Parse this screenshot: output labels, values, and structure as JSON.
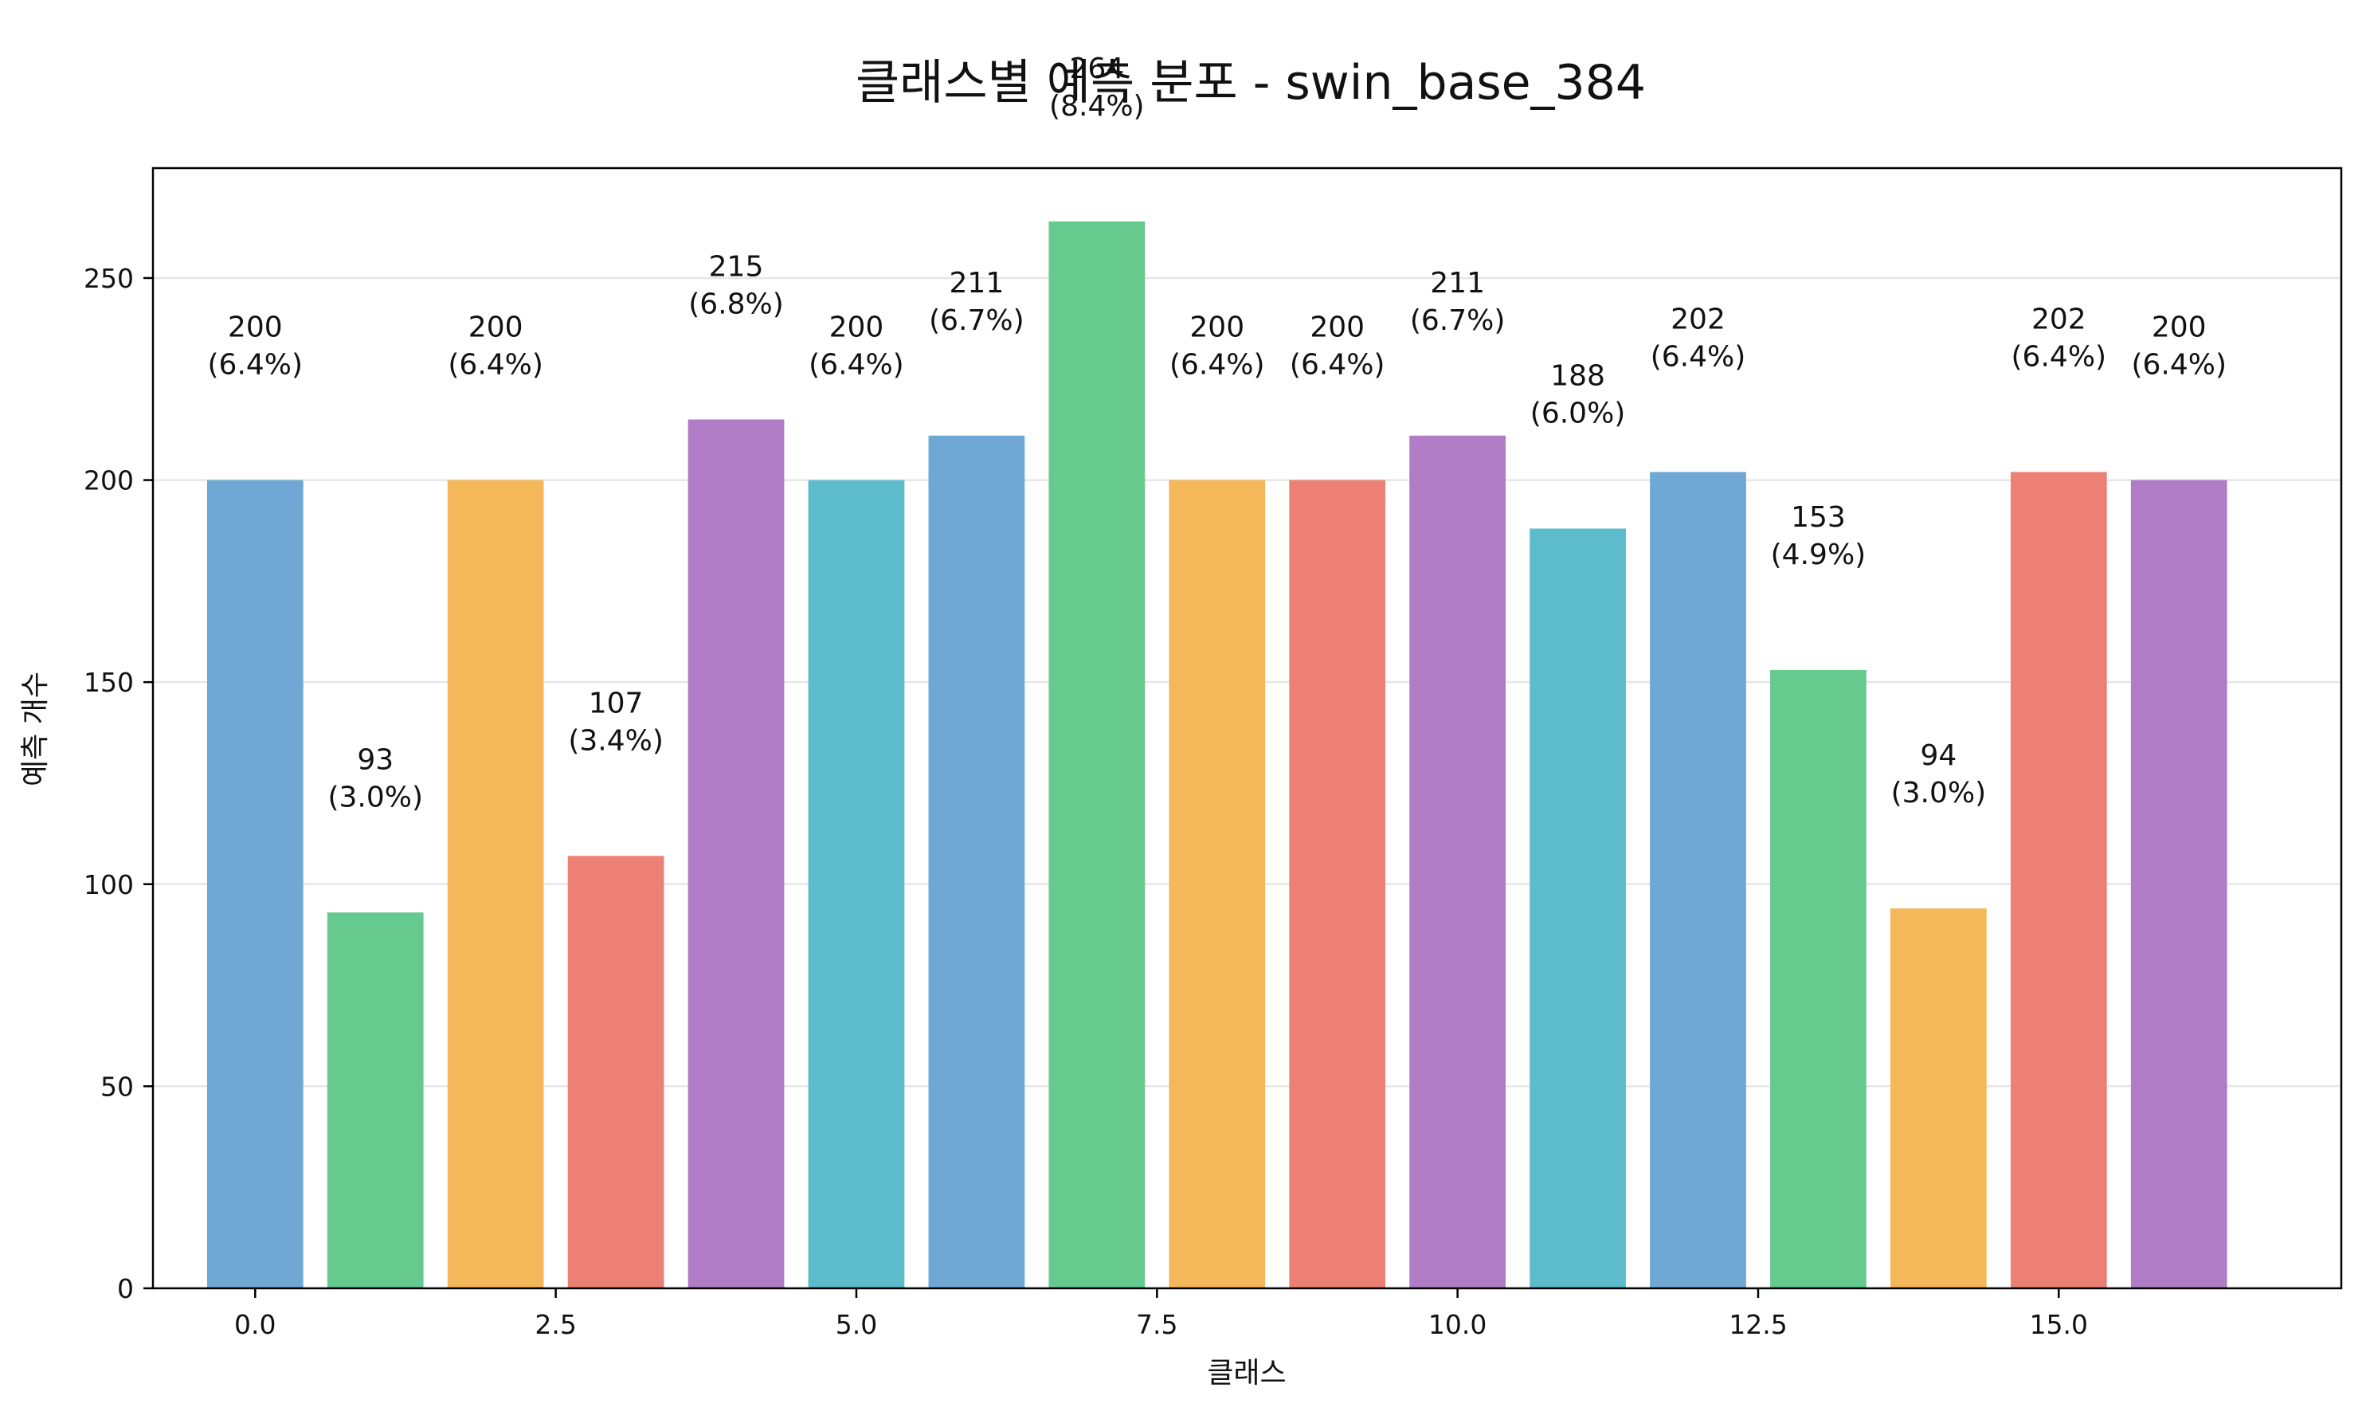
{
  "chart_data": {
    "type": "bar",
    "title": "클래스별 예측 분포 - swin_base_384",
    "xlabel": "클래스",
    "ylabel": "예측 개수",
    "x": [
      0,
      1,
      2,
      3,
      4,
      5,
      6,
      7,
      8,
      9,
      10,
      11,
      12,
      13,
      14,
      15,
      16
    ],
    "values": [
      200,
      93,
      200,
      107,
      215,
      200,
      211,
      264,
      200,
      200,
      211,
      188,
      202,
      153,
      94,
      202,
      200
    ],
    "value_labels": [
      "200",
      "93",
      "200",
      "107",
      "215",
      "200",
      "211",
      "264",
      "200",
      "200",
      "211",
      "188",
      "202",
      "153",
      "94",
      "202",
      "200"
    ],
    "percent_labels": [
      "(6.4%)",
      "(3.0%)",
      "(6.4%)",
      "(3.4%)",
      "(6.8%)",
      "(6.4%)",
      "(6.7%)",
      "(8.4%)",
      "(6.4%)",
      "(6.4%)",
      "(6.7%)",
      "(6.0%)",
      "(6.4%)",
      "(4.9%)",
      "(3.0%)",
      "(6.4%)",
      "(6.4%)"
    ],
    "colors": [
      "#6fa8d4",
      "#66c98e",
      "#f4b85a",
      "#ec8074",
      "#b07cc6",
      "#5dbccb",
      "#6fa8d4",
      "#66c98e",
      "#f4b85a",
      "#ec8074",
      "#b07cc6",
      "#5dbccb",
      "#6fa8d4",
      "#66c98e",
      "#f4b85a",
      "#ec8074",
      "#b07cc6"
    ],
    "xlim": [
      -0.85,
      17.35
    ],
    "ylim": [
      0,
      277.2
    ],
    "x_ticks": [
      0.0,
      2.5,
      5.0,
      7.5,
      10.0,
      12.5,
      15.0
    ],
    "x_tick_labels": [
      "0.0",
      "2.5",
      "5.0",
      "7.5",
      "10.0",
      "12.5",
      "15.0"
    ],
    "y_ticks": [
      0,
      50,
      100,
      150,
      200,
      250
    ],
    "y_tick_labels": [
      "0",
      "50",
      "100",
      "150",
      "200",
      "250"
    ],
    "grid": "horizontal",
    "legend": "none"
  }
}
